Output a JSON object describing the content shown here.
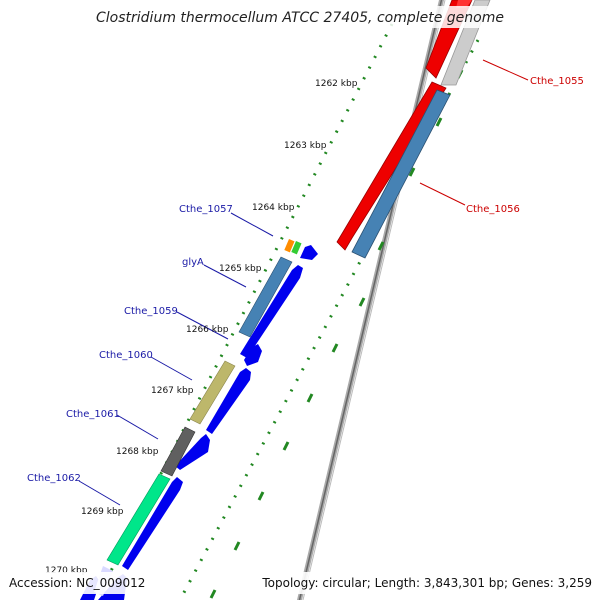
{
  "title": "Clostridium thermocellum ATCC 27405, complete genome",
  "footer": {
    "accession": "Accession: NC_009012",
    "topology": "Topology: circular; Length: 3,843,301 bp; Genes: 3,259"
  },
  "colors": {
    "forward_cds": "#0000ee",
    "reverse_cds": "#ee0000",
    "tick": "#228822",
    "backbone": "#888888",
    "label_forward": "#1a1aa6",
    "label_reverse": "#cc0000"
  },
  "ticks": [
    {
      "label": "1262 kbp"
    },
    {
      "label": "1263 kbp"
    },
    {
      "label": "1264 kbp"
    },
    {
      "label": "1265 kbp"
    },
    {
      "label": "1266 kbp"
    },
    {
      "label": "1267 kbp"
    },
    {
      "label": "1268 kbp"
    },
    {
      "label": "1269 kbp"
    },
    {
      "label": "1270 kbp"
    }
  ],
  "genes": [
    {
      "name": "Cthe_1055",
      "strand": "reverse",
      "color": "#ee0000"
    },
    {
      "name": "Cthe_1056",
      "strand": "reverse",
      "color": "#ee0000"
    },
    {
      "name": "Cthe_1057",
      "strand": "forward",
      "color": "#ff8c00"
    },
    {
      "name": "glyA",
      "strand": "forward",
      "color": "#4682b4"
    },
    {
      "name": "Cthe_1059",
      "strand": "forward",
      "color": "#4682b4"
    },
    {
      "name": "Cthe_1060",
      "strand": "forward",
      "color": "#bdb76b"
    },
    {
      "name": "Cthe_1061",
      "strand": "forward",
      "color": "#606060"
    },
    {
      "name": "Cthe_1062",
      "strand": "forward",
      "color": "#00e68a"
    }
  ]
}
